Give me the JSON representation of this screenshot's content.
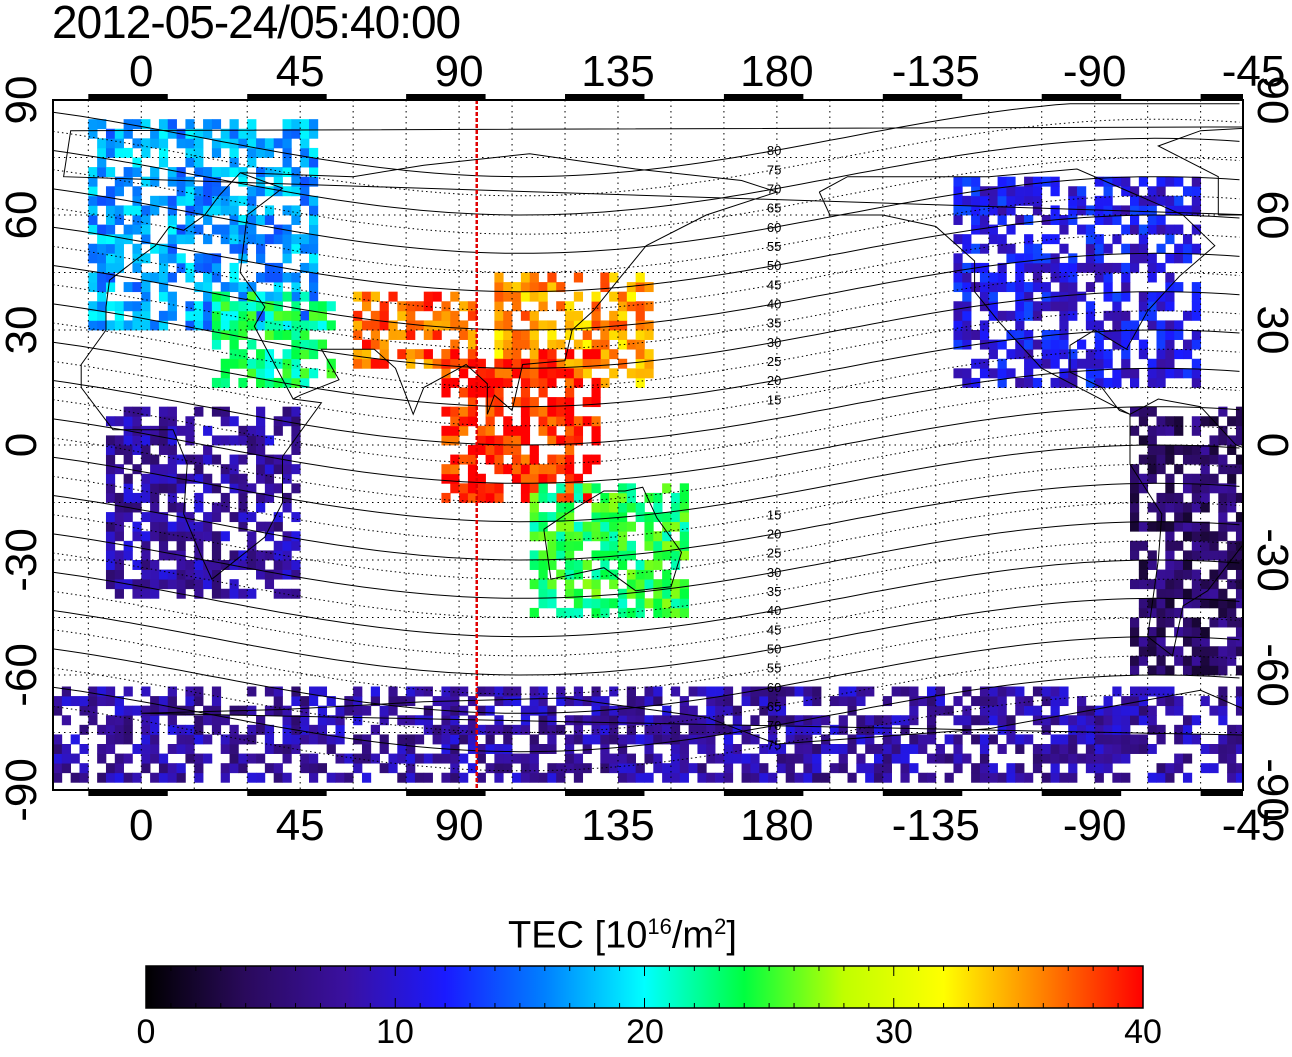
{
  "title": "2012-05-24/05:40:00",
  "map": {
    "x_ticks_top": [
      "0",
      "45",
      "90",
      "135",
      "180",
      "-135",
      "-90",
      "-45"
    ],
    "x_ticks_bottom": [
      "0",
      "45",
      "90",
      "135",
      "180",
      "-135",
      "-90",
      "-45"
    ],
    "y_ticks_left": [
      "90",
      "60",
      "30",
      "0",
      "-30",
      "-60",
      "-90"
    ],
    "y_ticks_right": [
      "90",
      "60",
      "30",
      "0",
      "-30",
      "-60",
      "-90"
    ],
    "terminator_longitude": 95,
    "terminator_color": "#e00000",
    "magnetic_latitude_labels": [
      "80",
      "75",
      "70",
      "65",
      "60",
      "55",
      "50",
      "45",
      "40",
      "35",
      "30",
      "25",
      "20",
      "15",
      "15",
      "20",
      "25",
      "30",
      "35",
      "40",
      "45",
      "50",
      "55",
      "60",
      "65",
      "70",
      "75"
    ]
  },
  "colorbar": {
    "title_main": "TEC  [10",
    "title_exp1": "16",
    "title_mid": "/m",
    "title_exp2": "2",
    "title_end": "]",
    "min": 0,
    "max": 40,
    "tick_labels": [
      "0",
      "10",
      "20",
      "30",
      "40"
    ],
    "colormap": [
      "#000000",
      "#2a0a5c",
      "#3a10a0",
      "#1a1aff",
      "#0080ff",
      "#00ffff",
      "#00ff40",
      "#c0ff00",
      "#ffff00",
      "#ff8000",
      "#ff0000"
    ]
  },
  "chart_data": {
    "type": "heatmap",
    "quantity": "TEC [10^16/m^2]",
    "color_range": [
      0,
      40
    ],
    "xlim_longitude": [
      -25,
      312
    ],
    "ylim_latitude": [
      -90,
      90
    ],
    "regions": [
      {
        "lon": [
          -15,
          50
        ],
        "lat": [
          30,
          85
        ],
        "tec": 17
      },
      {
        "lon": [
          20,
          55
        ],
        "lat": [
          15,
          40
        ],
        "tec": 23
      },
      {
        "lon": [
          60,
          95
        ],
        "lat": [
          20,
          40
        ],
        "tec": 37
      },
      {
        "lon": [
          100,
          145
        ],
        "lat": [
          15,
          45
        ],
        "tec": 35
      },
      {
        "lon": [
          85,
          130
        ],
        "lat": [
          -15,
          25
        ],
        "tec": 39
      },
      {
        "lon": [
          110,
          155
        ],
        "lat": [
          -45,
          -10
        ],
        "tec": 24
      },
      {
        "lon": [
          -10,
          45
        ],
        "lat": [
          -40,
          10
        ],
        "tec": 8
      },
      {
        "lon": [
          -130,
          -60
        ],
        "lat": [
          15,
          70
        ],
        "tec": 11
      },
      {
        "lon": [
          -80,
          -35
        ],
        "lat": [
          -60,
          10
        ],
        "tec": 5
      },
      {
        "lon": [
          -180,
          180
        ],
        "lat": [
          -88,
          -65
        ],
        "tec": 8
      }
    ]
  }
}
